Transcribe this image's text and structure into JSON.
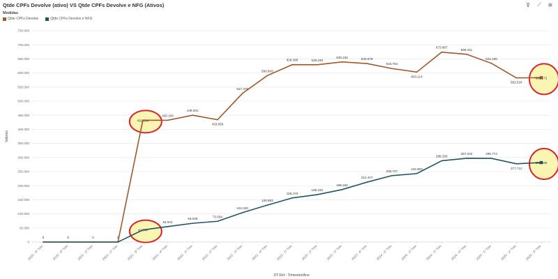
{
  "header": {
    "title": "Qtde CPFs Devolve (ativo) VS Qtde CPFs Devolve e NFG (Ativos)",
    "tools": [
      {
        "name": "filter-icon",
        "glyph": "⊽"
      },
      {
        "name": "line-chart-icon",
        "glyph": "⟋"
      },
      {
        "name": "settings-icon",
        "glyph": "✲"
      }
    ]
  },
  "legend": {
    "title": "Medidas",
    "items": [
      {
        "label": "Qtde CPFs Devolve",
        "color": "#a0582a"
      },
      {
        "label": "Qtde CPFs Devolve e NFG",
        "color": "#1f5562"
      }
    ]
  },
  "chart_data": {
    "type": "line",
    "xlabel": "DT Ref - Trimestre/Ano",
    "ylabel": "Valores",
    "ylim": [
      0,
      750000
    ],
    "yticks": [
      "0",
      "50.000",
      "100.000",
      "150.000",
      "200.000",
      "250.000",
      "300.000",
      "350.000",
      "400.000",
      "450.000",
      "500.000",
      "550.000",
      "600.000",
      "650.000",
      "700.000",
      "750.000"
    ],
    "grid": true,
    "categories": [
      "2020 - 3º Trim",
      "2020 - 4º Trim",
      "2021 - 1º Trim",
      "2021 - 2º Trim",
      "2021 - 3º Trim",
      "2021 - 4º Trim",
      "2022 - 1º Trim",
      "2022 - 2º Trim",
      "2022 - 3º Trim",
      "2022 - 4º Trim",
      "2023 - 1º Trim",
      "2023 - 2º Trim",
      "2023 - 3º Trim",
      "2023 - 4º Trim",
      "2024 - 1º Trim",
      "2024 - 2º Trim",
      "2024 - 3º Trim",
      "2024 - 4º Trim",
      "2025 - 1º Trim",
      "2025 - 2º Trim",
      "2025 - 3º Trim"
    ],
    "series": [
      {
        "name": "Qtde CPFs Devolve",
        "color": "#a0582a",
        "values": [
          0,
          0,
          0,
          0,
          432154,
          432154,
          449931,
          433959,
          527476,
          590843,
          629395,
          629235,
          639164,
          633578,
          615764,
          603114,
          673887,
          666411,
          634180,
          582524,
          583172
        ],
        "labels": [
          "0",
          "0",
          "0",
          "0",
          "432.154",
          "432.154",
          "449.931",
          "433.959",
          "527.476",
          "590.843",
          "629.395",
          "629.235",
          "639.164",
          "633.578",
          "615.764",
          "603.114",
          "673.887",
          "666.411",
          "634.180",
          "582.524",
          "583.172"
        ]
      },
      {
        "name": "Qtde CPFs Devolve e NFG",
        "color": "#1f5562",
        "values": [
          0,
          0,
          0,
          0,
          42944,
          54941,
          66539,
          73594,
          104320,
          130983,
          156470,
          168232,
          186162,
          212447,
          235727,
          242903,
          288330,
          297203,
          296774,
          277712,
          282038
        ],
        "labels": [
          "",
          "",
          "",
          "",
          "42.944",
          "54.941",
          "66.539",
          "73.594",
          "104.320",
          "130.983",
          "156.470",
          "168.232",
          "186.162",
          "212.447",
          "235.727",
          "242.903",
          "288.330",
          "297.203",
          "296.774",
          "277.712",
          "282.038"
        ]
      }
    ],
    "highlights": [
      {
        "series": 0,
        "index": 4
      },
      {
        "series": 1,
        "index": 4
      },
      {
        "series": 0,
        "index": 20
      },
      {
        "series": 1,
        "index": 20
      }
    ]
  }
}
